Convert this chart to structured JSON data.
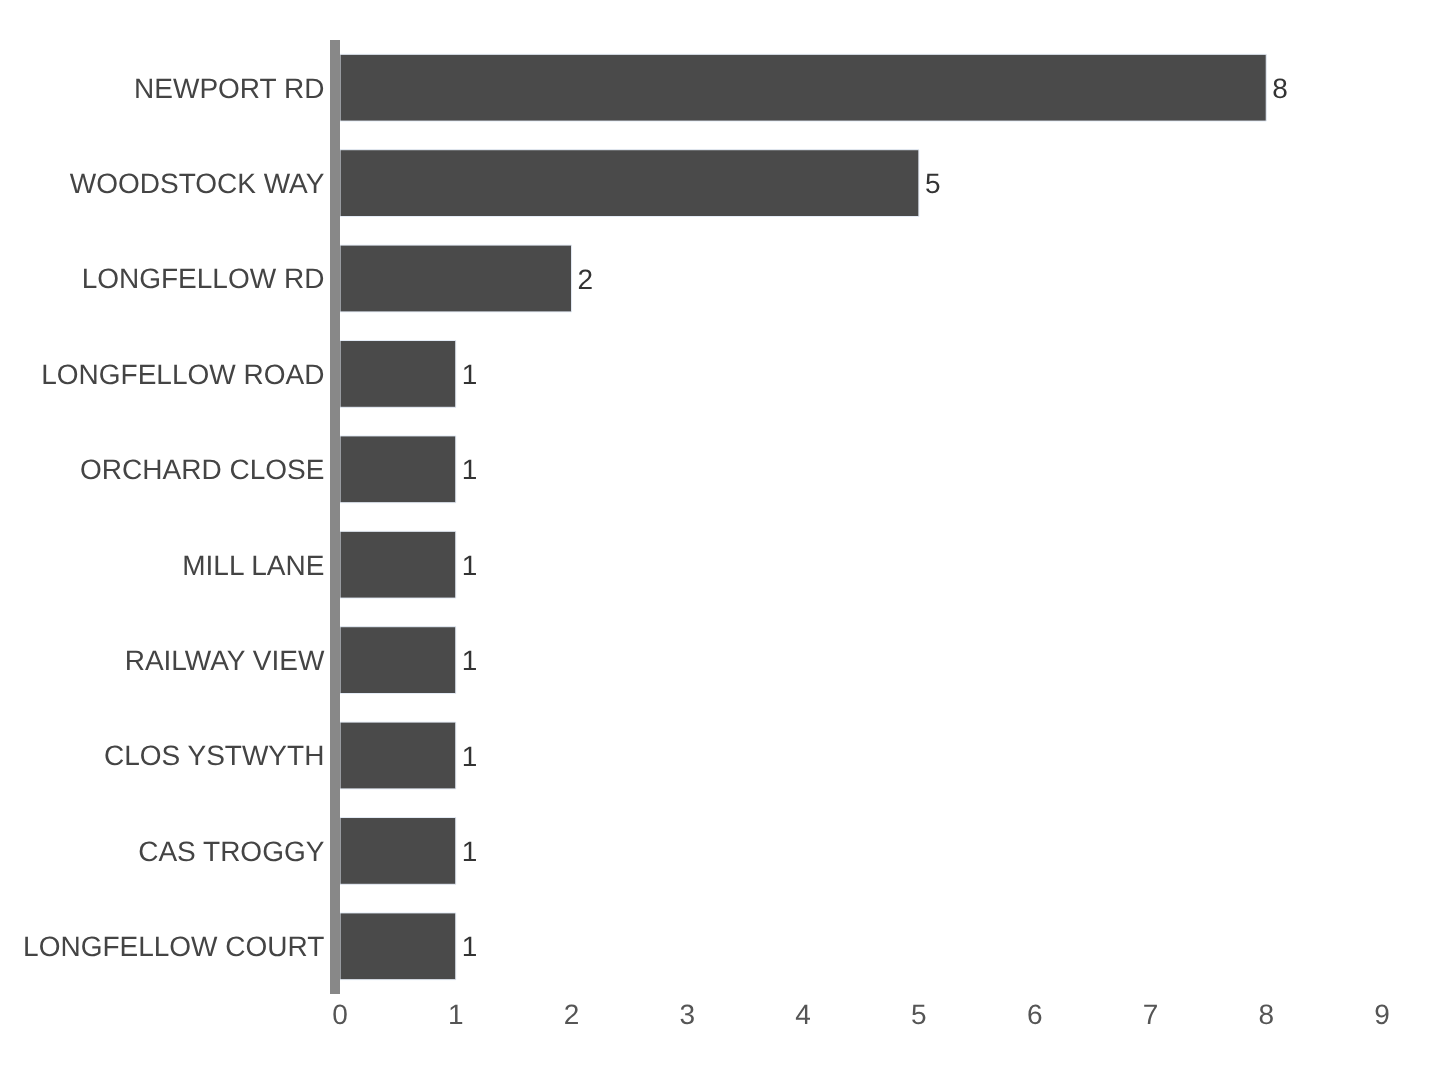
{
  "chart_data": {
    "type": "bar",
    "orientation": "horizontal",
    "categories": [
      "NEWPORT RD",
      "WOODSTOCK WAY",
      "LONGFELLOW RD",
      "LONGFELLOW ROAD",
      "ORCHARD CLOSE",
      "MILL LANE",
      "RAILWAY VIEW",
      "CLOS YSTWYTH",
      "CAS TROGGY",
      "LONGFELLOW COURT"
    ],
    "values": [
      8,
      5,
      2,
      1,
      1,
      1,
      1,
      1,
      1,
      1
    ],
    "color": "#4a4a4a",
    "xlim": [
      0,
      9
    ],
    "xticks": [
      0,
      1,
      2,
      3,
      4,
      5,
      6,
      7,
      8,
      9
    ],
    "data_labels": true
  }
}
